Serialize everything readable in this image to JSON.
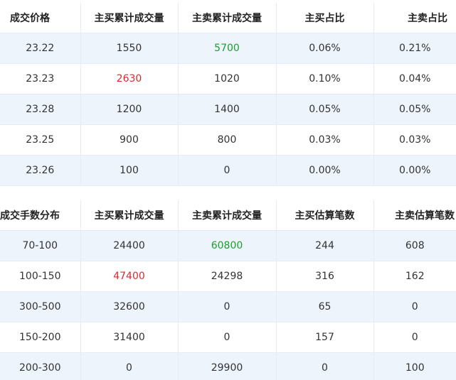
{
  "colors": {
    "highlight_buy": "#e0282e",
    "highlight_sell": "#1a9e2c",
    "stripe": "#eef4fc",
    "border": "#e3ebf4"
  },
  "price_table": {
    "headers": [
      "成交价格",
      "主买累计成交量",
      "主卖累计成交量",
      "主买占比",
      "主卖占比"
    ],
    "rows": [
      [
        "23.22",
        "1550",
        "5700",
        "0.06%",
        "0.21%"
      ],
      [
        "23.23",
        "2630",
        "1020",
        "0.10%",
        "0.04%"
      ],
      [
        "23.28",
        "1200",
        "1400",
        "0.05%",
        "0.05%"
      ],
      [
        "23.25",
        "900",
        "800",
        "0.03%",
        "0.03%"
      ],
      [
        "23.26",
        "100",
        "0",
        "0.00%",
        "0.00%"
      ]
    ],
    "highlights": [
      {
        "row": 0,
        "col": 2,
        "color": "green"
      },
      {
        "row": 1,
        "col": 1,
        "color": "red"
      }
    ]
  },
  "lot_table": {
    "headers": [
      "成交手数分布",
      "主买累计成交量",
      "主卖累计成交量",
      "主买估算笔数",
      "主卖估算笔数"
    ],
    "rows": [
      [
        "70-100",
        "24400",
        "60800",
        "244",
        "608"
      ],
      [
        "100-150",
        "47400",
        "24298",
        "316",
        "162"
      ],
      [
        "300-500",
        "32600",
        "0",
        "65",
        "0"
      ],
      [
        "150-200",
        "31400",
        "0",
        "157",
        "0"
      ],
      [
        "200-300",
        "0",
        "29900",
        "0",
        "100"
      ]
    ],
    "highlights": [
      {
        "row": 0,
        "col": 2,
        "color": "green"
      },
      {
        "row": 1,
        "col": 1,
        "color": "red"
      }
    ]
  }
}
